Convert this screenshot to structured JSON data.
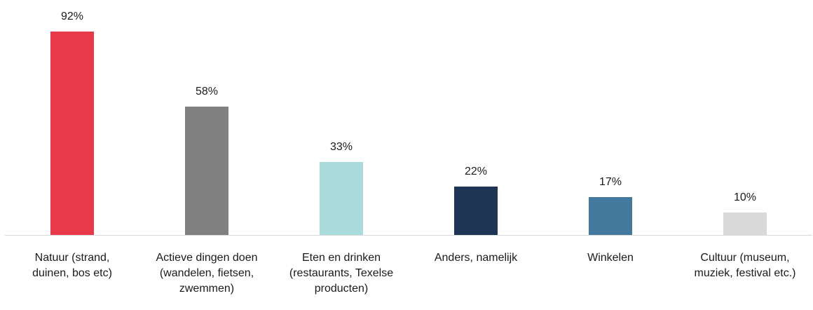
{
  "chart_data": {
    "type": "bar",
    "categories": [
      "Natuur (strand, duinen, bos etc)",
      "Actieve dingen doen (wandelen, fietsen, zwemmen)",
      "Eten en drinken (restaurants, Texelse producten)",
      "Anders, namelijk",
      "Winkelen",
      "Cultuur (museum, muziek, festival etc.)"
    ],
    "values": [
      92,
      58,
      33,
      22,
      17,
      10
    ],
    "value_labels": [
      "92%",
      "58%",
      "33%",
      "22%",
      "17%",
      "10%"
    ],
    "colors": [
      "#e8394a",
      "#808080",
      "#a8dbd9",
      "#1f3556",
      "#44799e",
      "#d9d9d9"
    ]
  }
}
